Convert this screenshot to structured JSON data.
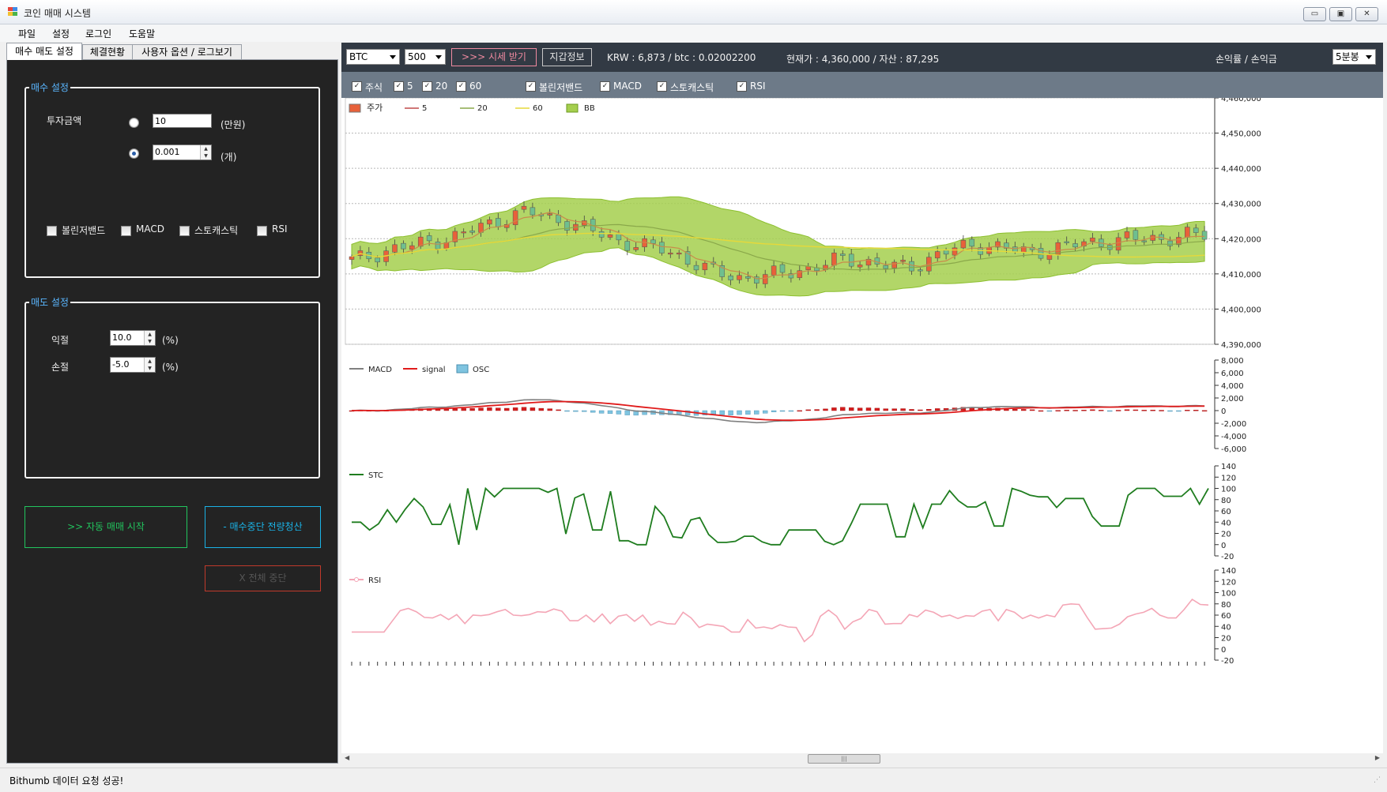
{
  "window": {
    "title": "코인 매매 시스템",
    "controls": {
      "minimize": "▭",
      "maximize": "▣",
      "close": "✕"
    }
  },
  "menu": [
    "파일",
    "설정",
    "로그인",
    "도움말"
  ],
  "tabs": [
    "매수 매도 설정",
    "체결현황",
    "사용자 옵션 / 로그보기"
  ],
  "buy_settings": {
    "legend": "매수 설정",
    "invest_label": "투자금액",
    "amount_value": "10",
    "amount_unit": "(만원)",
    "qty_value": "0.001",
    "qty_unit": "(개)",
    "indicators": [
      "볼린저밴드",
      "MACD",
      "스토캐스틱",
      "RSI"
    ]
  },
  "sell_settings": {
    "legend": "매도 설정",
    "take_profit_label": "익절",
    "take_profit_value": "10.0",
    "stop_loss_label": "손절",
    "stop_loss_value": "-5.0",
    "unit": "(%)"
  },
  "actions": {
    "start": ">> 자동 매매 시작",
    "stop_buy": "- 매수중단 전량청산",
    "stop_all": "X 전체 중단"
  },
  "colors": {
    "start": "#22c55e",
    "stop_buy": "#1ab2e6",
    "stop_all": "#c0392b",
    "candle_up": "#e8613a",
    "candle_down": "#6fbf8f",
    "bb_fill": "#a5cf4e",
    "macd": "#808080",
    "signal": "#e01b1b",
    "osc_pos": "#d41e1e",
    "osc_neg": "#7fc4e0",
    "stc": "#1f7d1f",
    "rsi": "#f4a6b6"
  },
  "toolbar": {
    "coin": "BTC",
    "count": "500",
    "fetch_button": ">>> 시세 받기",
    "wallet_button": "지갑정보",
    "krw_info": "KRW : 6,873 / btc : 0.02002200",
    "price_info": "현재가 : 4,360,000 / 자산 : 87,295",
    "profit_info": "손익률 / 손익금",
    "interval": "5분봉",
    "checks": [
      "주식",
      "5",
      "20",
      "60"
    ],
    "checks2": [
      "볼린저밴드",
      "MACD",
      "스토캐스틱",
      "RSI"
    ],
    "check_mark": "✓"
  },
  "scroll": {
    "grip": "|||"
  },
  "status": "Bithumb 데이터 요청 성공!",
  "chart_data": [
    {
      "type": "candlestick",
      "legend": [
        "주가",
        "5",
        "20",
        "60",
        "BB"
      ],
      "ylim": [
        4390000,
        4460000
      ],
      "yticks": [
        "4,460,000",
        "4,450,000",
        "4,440,000",
        "4,430,000",
        "4,420,000",
        "4,410,000",
        "4,400,000",
        "4,390,000"
      ],
      "ohlc_points": 100,
      "close_approx": [
        4414000,
        4415000,
        4417000,
        4418000,
        4419000,
        4420000,
        4422000,
        4424000,
        4426000,
        4428000,
        4426000,
        4425000,
        4423000,
        4421000,
        4419000,
        4418000,
        4417000,
        4415000,
        4412000,
        4410000,
        4409000,
        4409000,
        4410000,
        4411000,
        4412000,
        4414000,
        4414000,
        4413000,
        4412000,
        4412000,
        4415000,
        4417000,
        4418000,
        4418000,
        4417000,
        4416000,
        4417000,
        4418000,
        4419000,
        4419000,
        4420000,
        4420000,
        4420000,
        4421000,
        4421000
      ]
    },
    {
      "type": "line",
      "legend": [
        "MACD",
        "signal",
        "OSC"
      ],
      "ylim": [
        -6000,
        8000
      ],
      "yticks": [
        "8,000",
        "6,000",
        "4,000",
        "2,000",
        "0",
        "-2,000",
        "-4,000",
        "-6,000"
      ]
    },
    {
      "type": "line",
      "legend": [
        "STC"
      ],
      "ylim": [
        -20,
        140
      ],
      "yticks": [
        "140",
        "120",
        "100",
        "80",
        "60",
        "40",
        "20",
        "0",
        "-20"
      ],
      "values": [
        40,
        40,
        26,
        37,
        62,
        40,
        63,
        82,
        67,
        36,
        36,
        71,
        0,
        100,
        26,
        100,
        85,
        100,
        100,
        100,
        100,
        100,
        93,
        100,
        19,
        83,
        90,
        26,
        26,
        95,
        7,
        7,
        0,
        0,
        68,
        50,
        14,
        12,
        44,
        48,
        18,
        4,
        4,
        6,
        15,
        15,
        5,
        0,
        0,
        26,
        26,
        26,
        26,
        6,
        0,
        7,
        38,
        72,
        72,
        72,
        72,
        14,
        14,
        72,
        30,
        72,
        72,
        96,
        78,
        67,
        67,
        76,
        33,
        33,
        100,
        95,
        88,
        85,
        85,
        66,
        82,
        82,
        82,
        50,
        33,
        33,
        33,
        88,
        100,
        100,
        100,
        86,
        86,
        86,
        100,
        72,
        100
      ]
    },
    {
      "type": "line",
      "legend": [
        "RSI"
      ],
      "ylim": [
        -20,
        140
      ],
      "yticks": [
        "140",
        "120",
        "100",
        "80",
        "60",
        "40",
        "20",
        "0",
        "-20"
      ],
      "values": [
        30,
        30,
        30,
        30,
        30,
        49,
        68,
        72,
        66,
        56,
        55,
        61,
        52,
        61,
        45,
        60,
        59,
        61,
        66,
        70,
        60,
        59,
        61,
        66,
        65,
        71,
        67,
        50,
        50,
        60,
        48,
        62,
        45,
        58,
        61,
        49,
        60,
        42,
        49,
        45,
        44,
        65,
        55,
        38,
        44,
        42,
        40,
        30,
        30,
        52,
        37,
        39,
        36,
        43,
        39,
        38,
        13,
        25,
        58,
        69,
        58,
        35,
        48,
        54,
        70,
        66,
        44,
        45,
        45,
        61,
        57,
        69,
        65,
        57,
        60,
        54,
        59,
        58,
        67,
        70,
        50,
        70,
        65,
        54,
        60,
        55,
        60,
        57,
        78,
        80,
        79,
        56,
        35,
        36,
        37,
        44,
        57,
        62,
        65,
        72,
        60,
        55,
        55,
        70,
        88,
        79,
        78
      ]
    }
  ]
}
